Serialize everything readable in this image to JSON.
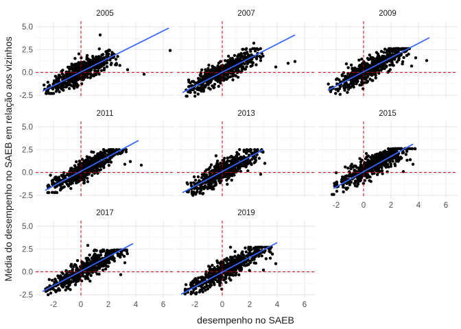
{
  "chart_data": {
    "type": "scatter",
    "layout": "faceted grid, 3 columns",
    "xlabel": "desempenho no SAEB",
    "ylabel": "Média do desempenho no SAEB em relação aos vizinhos",
    "xlim": [
      -3.3,
      6.8
    ],
    "ylim": [
      -2.8,
      5.6
    ],
    "x_ticks": [
      -2,
      0,
      2,
      4,
      6
    ],
    "x_tick_labels": [
      "-2",
      "0",
      "2",
      "4",
      "6"
    ],
    "y_ticks": [
      -2.5,
      0,
      2.5,
      5
    ],
    "y_tick_labels": [
      "-2.5",
      "0.0",
      "2.5",
      "5.0"
    ],
    "reference_lines": {
      "x": 0,
      "y": 0,
      "color": "#cc0000",
      "style": "dashed"
    },
    "point_color": "#000000",
    "fit_color": "#3366ff",
    "grid": true,
    "facets": [
      {
        "name": "2005",
        "fit": {
          "x": [
            -2.8,
            6.4
          ],
          "y": [
            -2.05,
            4.85
          ]
        },
        "cloud": {
          "x_range": [
            -2.7,
            2.9
          ],
          "y_range": [
            -2.3,
            2.6
          ]
        },
        "outliers": [
          [
            1.4,
            4.1
          ],
          [
            6.5,
            2.4
          ],
          [
            4.6,
            -0.2
          ],
          [
            3.4,
            0.3
          ]
        ]
      },
      {
        "name": "2007",
        "fit": {
          "x": [
            -2.9,
            5.3
          ],
          "y": [
            -2.2,
            4.1
          ]
        },
        "cloud": {
          "x_range": [
            -2.7,
            3.0
          ],
          "y_range": [
            -2.6,
            2.6
          ]
        },
        "outliers": [
          [
            2.3,
            3.2
          ],
          [
            5.3,
            1.2
          ],
          [
            3.9,
            0.6
          ],
          [
            4.8,
            1.0
          ]
        ]
      },
      {
        "name": "2009",
        "fit": {
          "x": [
            -2.6,
            4.8
          ],
          "y": [
            -1.95,
            3.8
          ]
        },
        "cloud": {
          "x_range": [
            -2.6,
            3.4
          ],
          "y_range": [
            -2.4,
            2.6
          ]
        },
        "outliers": [
          [
            4.6,
            1.3
          ],
          [
            3.8,
            1.6
          ],
          [
            3.5,
            0.7
          ]
        ]
      },
      {
        "name": "2011",
        "fit": {
          "x": [
            -2.6,
            4.2
          ],
          "y": [
            -1.95,
            3.5
          ]
        },
        "cloud": {
          "x_range": [
            -2.6,
            3.3
          ],
          "y_range": [
            -2.2,
            2.5
          ]
        },
        "outliers": [
          [
            4.4,
            0.8
          ],
          [
            3.6,
            1.2
          ],
          [
            3.2,
            0.9
          ]
        ]
      },
      {
        "name": "2013",
        "fit": {
          "x": [
            -2.9,
            3.0
          ],
          "y": [
            -2.2,
            2.5
          ]
        },
        "cloud": {
          "x_range": [
            -2.6,
            3.1
          ],
          "y_range": [
            -2.6,
            2.5
          ]
        },
        "outliers": [
          [
            3.1,
            1.0
          ],
          [
            2.8,
            -0.2
          ]
        ]
      },
      {
        "name": "2015",
        "fit": {
          "x": [
            -2.2,
            3.6
          ],
          "y": [
            -1.75,
            3.1
          ]
        },
        "cloud": {
          "x_range": [
            -2.3,
            3.8
          ],
          "y_range": [
            -2.4,
            2.6
          ]
        },
        "outliers": [
          [
            3.6,
            0.9
          ],
          [
            3.4,
            1.4
          ],
          [
            2.9,
            0.1
          ]
        ]
      },
      {
        "name": "2017",
        "fit": {
          "x": [
            -2.8,
            3.8
          ],
          "y": [
            -2.15,
            3.1
          ]
        },
        "cloud": {
          "x_range": [
            -2.6,
            3.4
          ],
          "y_range": [
            -2.5,
            2.4
          ]
        },
        "outliers": [
          [
            3.2,
            1.0
          ],
          [
            2.9,
            -0.3
          ],
          [
            0.5,
            2.9
          ]
        ]
      },
      {
        "name": "2019",
        "fit": {
          "x": [
            -3.0,
            4.0
          ],
          "y": [
            -2.45,
            3.2
          ]
        },
        "cloud": {
          "x_range": [
            -2.9,
            3.8
          ],
          "y_range": [
            -2.4,
            2.7
          ]
        },
        "outliers": [
          [
            3.9,
            0.9
          ],
          [
            3.5,
            1.5
          ],
          [
            3.0,
            0.2
          ],
          [
            0.6,
            2.7
          ]
        ]
      }
    ]
  }
}
